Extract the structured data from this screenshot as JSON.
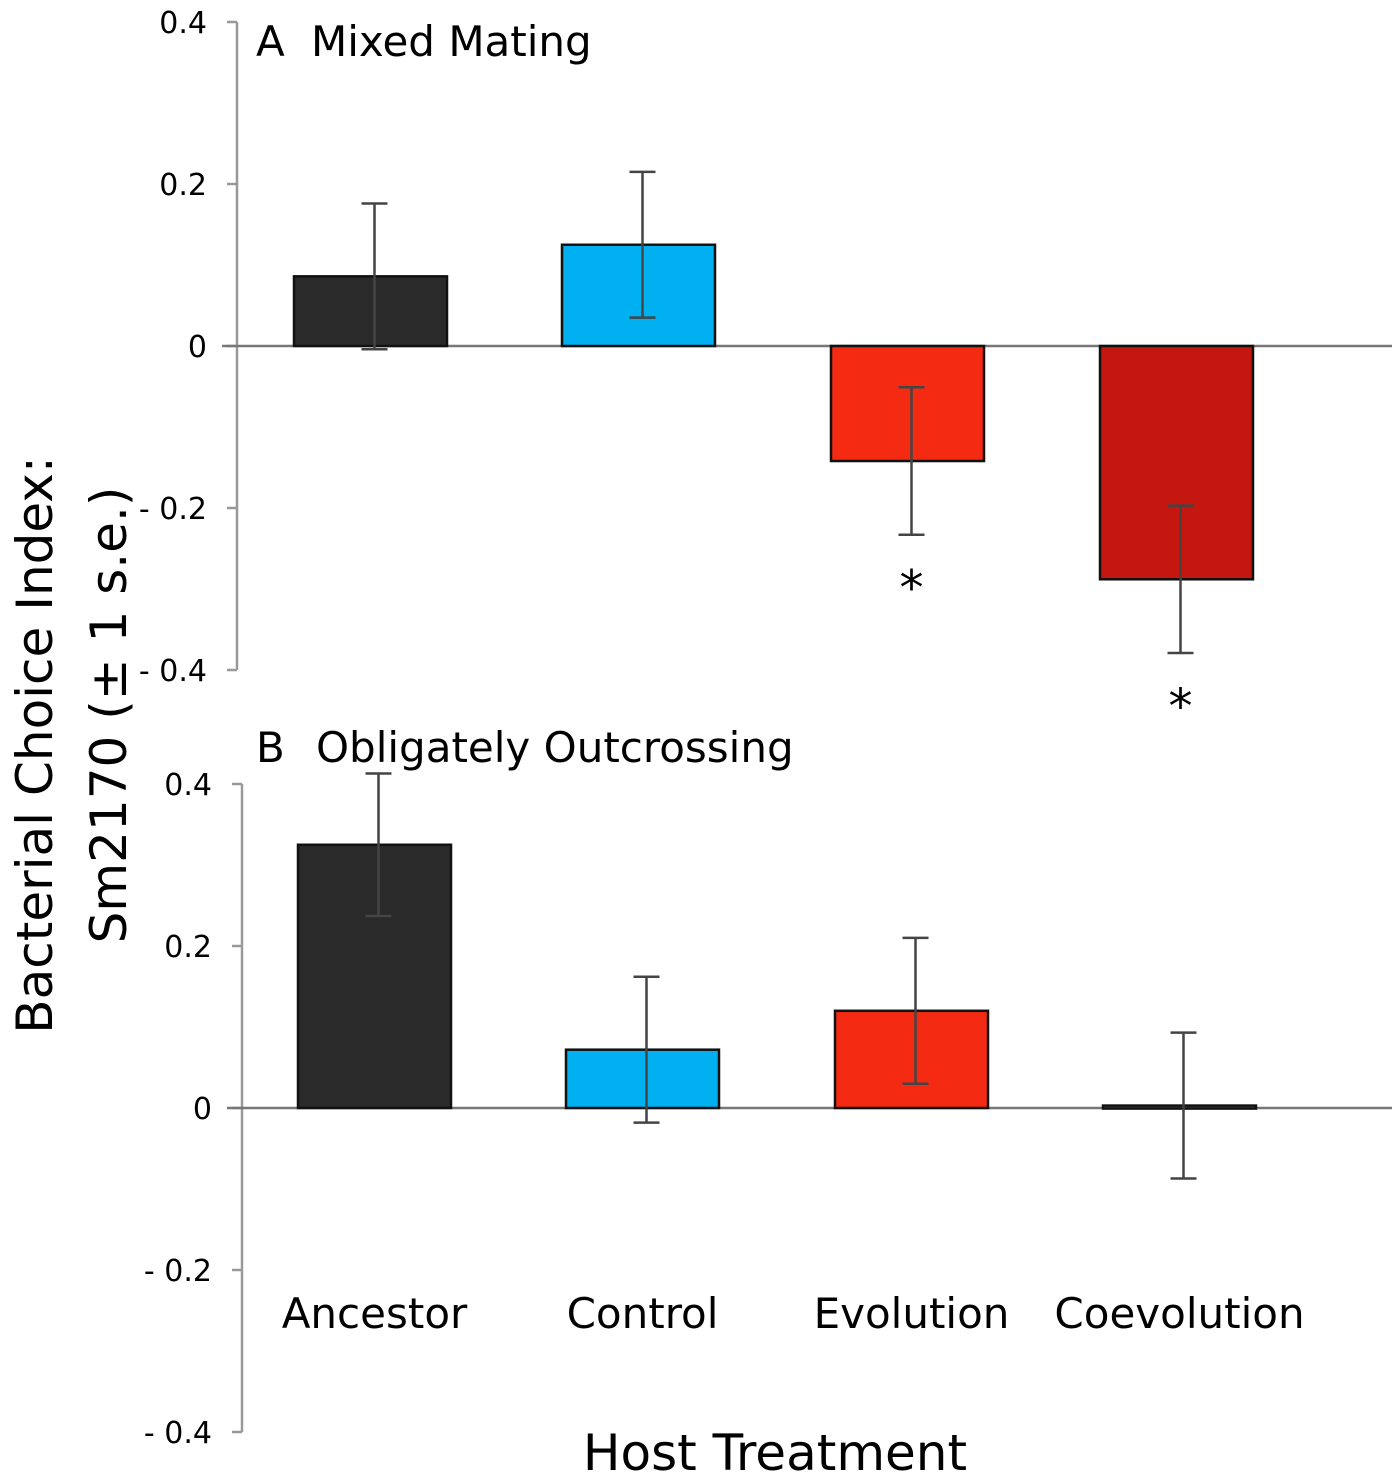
{
  "chart_data": [
    {
      "type": "bar",
      "panel_label": "A",
      "title": "Mixed Mating",
      "categories": [
        "Ancestor",
        "Control",
        "Evolution",
        "Coevolution"
      ],
      "values": [
        0.086,
        0.125,
        -0.142,
        -0.288
      ],
      "error_se": [
        0.09,
        0.09,
        0.091,
        0.091
      ],
      "significance": [
        "",
        "",
        "*",
        "*"
      ],
      "colors": [
        "#2a2a2a",
        "#00b0f0",
        "#f52a12",
        "#c4170f"
      ],
      "ylim": [
        -0.4,
        0.4
      ],
      "yticks": [
        0.4,
        0.2,
        0,
        -0.2,
        -0.4
      ],
      "ytick_labels": [
        "0.4",
        "0.2",
        "0",
        "- 0.2",
        "- 0.4"
      ],
      "grid": false
    },
    {
      "type": "bar",
      "panel_label": "B",
      "title": "Obligately Outcrossing",
      "categories": [
        "Ancestor",
        "Control",
        "Evolution",
        "Coevolution"
      ],
      "values": [
        0.325,
        0.072,
        0.12,
        0.003
      ],
      "error_se": [
        0.088,
        0.09,
        0.09,
        0.09
      ],
      "significance": [
        "",
        "",
        "",
        ""
      ],
      "colors": [
        "#2a2a2a",
        "#00b0f0",
        "#f52a12",
        "#555555"
      ],
      "ylim": [
        -0.4,
        0.4
      ],
      "yticks": [
        0.4,
        0.2,
        0,
        -0.2,
        -0.4
      ],
      "ytick_labels": [
        "0.4",
        "0.2",
        "0",
        "- 0.2",
        "- 0.4"
      ],
      "grid": false
    }
  ],
  "ylabel_line1": "Bacterial Choice Index:",
  "ylabel_line2": "Sm2170 (± 1 s.e.)",
  "xlabel": "Host Treatment"
}
